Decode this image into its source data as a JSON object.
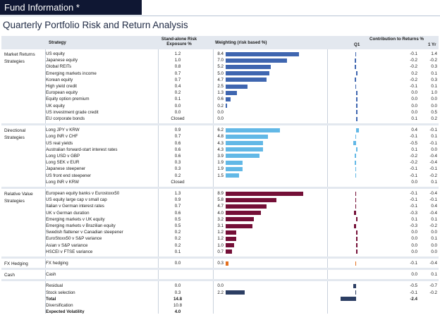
{
  "title": "Fund Information *",
  "subtitle": "Quarterly Portfolio Risk and Return Analysis",
  "headers": {
    "strategy": "Strategy",
    "exposure_line1": "Stand-alone Risk",
    "exposure_line2": "Exposure %",
    "weighting": "Weighting (risk based %)",
    "contribution": "Contribution to Returns %",
    "q1": "Q1",
    "yr": "1 Yr"
  },
  "colors": {
    "market": "#3f66b0",
    "directional": "#62b8e6",
    "relative": "#740f37",
    "fx": "#e36f1e",
    "residual": "#2c3e63"
  },
  "sections": [
    {
      "category": "Market Returns Strategies",
      "color_key": "market",
      "rows": [
        {
          "name": "US equity",
          "exposure": "1.2",
          "weight": "8.4",
          "q1": "-0.1",
          "yr": "1.4"
        },
        {
          "name": "Japanese equity",
          "exposure": "1.0",
          "weight": "7.0",
          "q1": "-0.2",
          "yr": "-0.2"
        },
        {
          "name": "Global REITs",
          "exposure": "0.8",
          "weight": "5.2",
          "q1": "-0.2",
          "yr": "0.3"
        },
        {
          "name": "Emerging markets income",
          "exposure": "0.7",
          "weight": "5.0",
          "q1": "0.2",
          "yr": "0.1"
        },
        {
          "name": "Korean equity",
          "exposure": "0.7",
          "weight": "4.7",
          "q1": "-0.2",
          "yr": "0.3"
        },
        {
          "name": "High yield credit",
          "exposure": "0.4",
          "weight": "2.5",
          "q1": "-0.1",
          "yr": "0.1"
        },
        {
          "name": "European equity",
          "exposure": "0.2",
          "weight": "1.3",
          "q1": "0.0",
          "yr": "1.0"
        },
        {
          "name": "Equity option premium",
          "exposure": "0.1",
          "weight": "0.6",
          "q1": "0.0",
          "yr": "0.0"
        },
        {
          "name": "UK equity",
          "exposure": "0.0",
          "weight": "0.2",
          "q1": "0.0",
          "yr": "0.0"
        },
        {
          "name": "US investment grade credit",
          "exposure": "0.0",
          "weight": "0.0",
          "q1": "0.0",
          "yr": "0.5"
        },
        {
          "name": "EU corporate bonds",
          "exposure": "Closed",
          "weight": "0.0",
          "q1": "0.1",
          "yr": "0.2"
        }
      ]
    },
    {
      "category": "Directional Strategies",
      "color_key": "directional",
      "rows": [
        {
          "name": "Long JPY v KRW",
          "exposure": "0.9",
          "weight": "6.2",
          "q1": "0.4",
          "yr": "-0.1"
        },
        {
          "name": "Long INR v CHF",
          "exposure": "0.7",
          "weight": "4.8",
          "q1": "-0.1",
          "yr": "0.1"
        },
        {
          "name": "US real yields",
          "exposure": "0.6",
          "weight": "4.3",
          "q1": "-0.5",
          "yr": "-0.1"
        },
        {
          "name": "Australian forward-start interest rates",
          "exposure": "0.6",
          "weight": "4.3",
          "q1": "0.1",
          "yr": "0.0"
        },
        {
          "name": "Long USD v GBP",
          "exposure": "0.6",
          "weight": "3.9",
          "q1": "-0.2",
          "yr": "-0.4"
        },
        {
          "name": "Long SEK v EUR",
          "exposure": "0.3",
          "weight": "1.9",
          "q1": "-0.2",
          "yr": "-0.4"
        },
        {
          "name": "Japanese steepener",
          "exposure": "0.3",
          "weight": "1.9",
          "q1": "-0.1",
          "yr": "-0.1"
        },
        {
          "name": "US front end steepener",
          "exposure": "0.2",
          "weight": "1.5",
          "q1": "-0.1",
          "yr": "-0.2"
        },
        {
          "name": "Long INR v KRW",
          "exposure": "Closed",
          "weight": "",
          "q1": "0.0",
          "yr": "0.1"
        }
      ]
    },
    {
      "category": "Relative Value Strategies",
      "color_key": "relative",
      "rows": [
        {
          "name": "European equity banks v Eurostoxx50",
          "exposure": "1.3",
          "weight": "8.9",
          "q1": "-0.1",
          "yr": "-0.4"
        },
        {
          "name": "US equity large cap v small cap",
          "exposure": "0.9",
          "weight": "5.8",
          "q1": "-0.1",
          "yr": "-0.1"
        },
        {
          "name": "Italian v German interest rates",
          "exposure": "0.7",
          "weight": "4.7",
          "q1": "-0.1",
          "yr": "0.4"
        },
        {
          "name": "UK v German duration",
          "exposure": "0.6",
          "weight": "4.0",
          "q1": "-0.3",
          "yr": "-0.4"
        },
        {
          "name": "Emerging markets v UK equity",
          "exposure": "0.5",
          "weight": "3.2",
          "q1": "0.1",
          "yr": "0.1"
        },
        {
          "name": "Emerging markets v Brazilian equity",
          "exposure": "0.5",
          "weight": "3.1",
          "q1": "-0.3",
          "yr": "-0.2"
        },
        {
          "name": "Swedish flattener v Canadian steepener",
          "exposure": "0.2",
          "weight": "1.2",
          "q1": "0.0",
          "yr": "0.0"
        },
        {
          "name": "EuroStoxx50 v S&P variance",
          "exposure": "0.2",
          "weight": "1.2",
          "q1": "0.0",
          "yr": "0.1"
        },
        {
          "name": "Asian v S&P variance",
          "exposure": "0.2",
          "weight": "1.0",
          "q1": "0.0",
          "yr": "0.0"
        },
        {
          "name": "HSCEI v FTSE variance",
          "exposure": "0.1",
          "weight": "0.7",
          "q1": "0.0",
          "yr": "0.0"
        }
      ]
    },
    {
      "category": "FX Hedging",
      "color_key": "fx",
      "rows": [
        {
          "name": "FX hedging",
          "exposure": "0.0",
          "weight": "0.3",
          "q1": "-0.1",
          "yr": "-0.4"
        }
      ]
    },
    {
      "category": "Cash",
      "color_key": "market",
      "rows": [
        {
          "name": "Cash",
          "exposure": "",
          "weight": "",
          "q1": "0.0",
          "yr": "0.1"
        }
      ]
    },
    {
      "category": "",
      "color_key": "residual",
      "rows": [
        {
          "name": "Residual",
          "exposure": "0.0",
          "weight": "0.0",
          "q1": "-0.5",
          "yr": "-0.7"
        },
        {
          "name": "Stock selection",
          "exposure": "0.3",
          "weight": "2.2",
          "q1": "-0.1",
          "yr": "-0.2"
        },
        {
          "name": "Total",
          "exposure": "14.8",
          "weight": "",
          "q1": "-2.4",
          "yr": "",
          "bold": true
        },
        {
          "name": "Diversification",
          "exposure": "10.8",
          "weight": "",
          "q1": "",
          "yr": ""
        },
        {
          "name": "Expected Volatility",
          "exposure": "4.0",
          "weight": "",
          "q1": "",
          "yr": "",
          "bold": true
        }
      ]
    }
  ]
}
